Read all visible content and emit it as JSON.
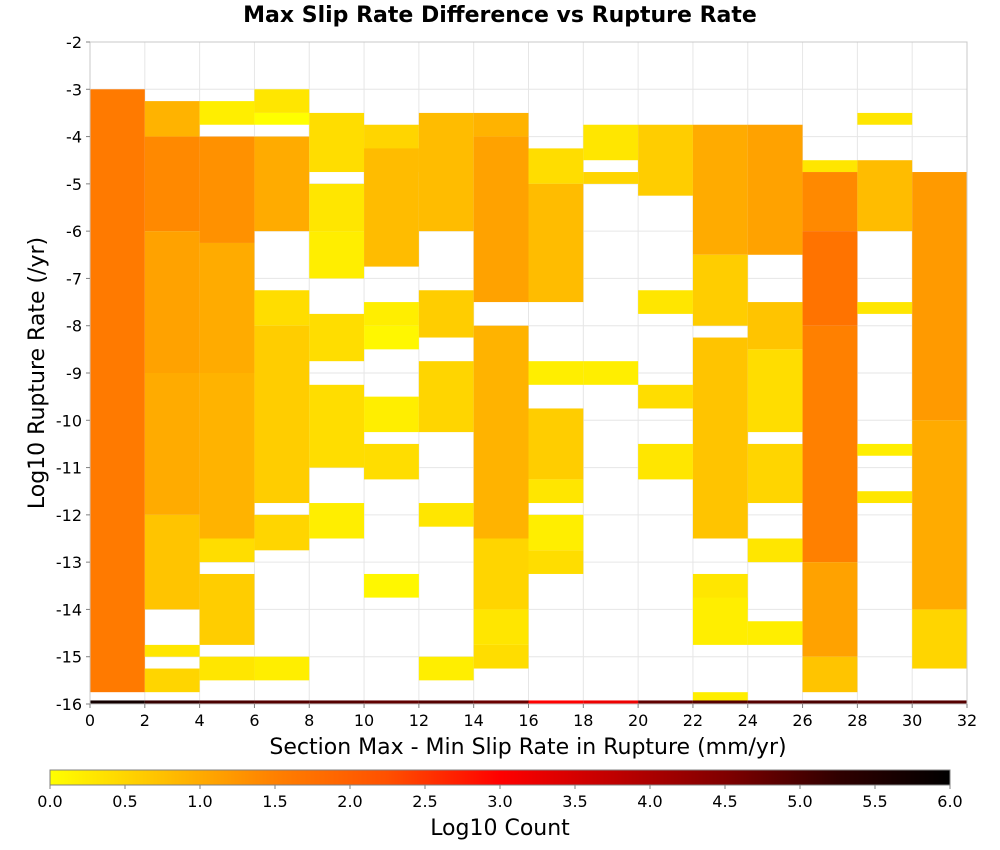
{
  "chart_data": {
    "type": "heatmap",
    "title": "Max Slip Rate Difference vs Rupture Rate",
    "xlabel": "Section Max - Min Slip Rate in Rupture (mm/yr)",
    "ylabel": "Log10 Rupture Rate (/yr)",
    "xlim": [
      0,
      32
    ],
    "ylim": [
      -16,
      -2
    ],
    "x_bin_width": 2,
    "y_bin_height": 0.25,
    "x_ticks": [
      "0",
      "2",
      "4",
      "6",
      "8",
      "10",
      "12",
      "14",
      "16",
      "18",
      "20",
      "22",
      "24",
      "26",
      "28",
      "30",
      "32"
    ],
    "y_ticks": [
      "-2",
      "-3",
      "-4",
      "-5",
      "-6",
      "-7",
      "-8",
      "-9",
      "-10",
      "-11",
      "-12",
      "-13",
      "-14",
      "-15",
      "-16"
    ],
    "grid": true,
    "colorbar": {
      "label": "Log10 Count",
      "range": [
        0,
        6
      ],
      "ticks": [
        "0.0",
        "0.5",
        "1.0",
        "1.5",
        "2.0",
        "2.5",
        "3.0",
        "3.5",
        "4.0",
        "4.5",
        "5.0",
        "5.5",
        "6.0"
      ],
      "stops": [
        "#ffff00",
        "#ffc000",
        "#ff8000",
        "#ff5000",
        "#ff0000",
        "#c00000",
        "#800000",
        "#300000",
        "#000000"
      ]
    },
    "columns": [
      {
        "x": 1,
        "segments": [
          {
            "from": -15.75,
            "to": -3.0,
            "value": 1.6
          }
        ],
        "bottom_value": 5.7
      },
      {
        "x": 3,
        "segments": [
          {
            "from": -4.0,
            "to": -3.25,
            "value": 0.9
          },
          {
            "from": -6.0,
            "to": -4.0,
            "value": 1.4
          },
          {
            "from": -9.0,
            "to": -6.0,
            "value": 1.1
          },
          {
            "from": -12.0,
            "to": -9.0,
            "value": 1.0
          },
          {
            "from": -14.0,
            "to": -12.0,
            "value": 0.7
          },
          {
            "from": -15.0,
            "to": -14.75,
            "value": 0.3
          },
          {
            "from": -15.75,
            "to": -15.25,
            "value": 0.5
          }
        ],
        "bottom_value": 5.2
      },
      {
        "x": 5,
        "segments": [
          {
            "from": -3.75,
            "to": -3.25,
            "value": 0.2
          },
          {
            "from": -6.25,
            "to": -4.0,
            "value": 1.3
          },
          {
            "from": -9.0,
            "to": -6.25,
            "value": 1.0
          },
          {
            "from": -12.5,
            "to": -9.0,
            "value": 0.9
          },
          {
            "from": -13.0,
            "to": -12.5,
            "value": 0.4
          },
          {
            "from": -14.75,
            "to": -13.25,
            "value": 0.6
          },
          {
            "from": -15.5,
            "to": -15.0,
            "value": 0.3
          }
        ],
        "bottom_value": 5.0
      },
      {
        "x": 7,
        "segments": [
          {
            "from": -3.5,
            "to": -3.0,
            "value": 0.3
          },
          {
            "from": -3.75,
            "to": -3.5,
            "value": 0.0
          },
          {
            "from": -6.0,
            "to": -4.0,
            "value": 1.0
          },
          {
            "from": -8.0,
            "to": -7.25,
            "value": 0.4
          },
          {
            "from": -11.75,
            "to": -8.0,
            "value": 0.6
          },
          {
            "from": -12.75,
            "to": -12.0,
            "value": 0.5
          },
          {
            "from": -15.5,
            "to": -15.0,
            "value": 0.2
          }
        ],
        "bottom_value": 4.9
      },
      {
        "x": 9,
        "segments": [
          {
            "from": -4.75,
            "to": -3.5,
            "value": 0.4
          },
          {
            "from": -6.0,
            "to": -5.0,
            "value": 0.3
          },
          {
            "from": -7.0,
            "to": -6.0,
            "value": 0.2
          },
          {
            "from": -8.75,
            "to": -7.75,
            "value": 0.4
          },
          {
            "from": -11.0,
            "to": -9.25,
            "value": 0.4
          },
          {
            "from": -12.5,
            "to": -11.75,
            "value": 0.2
          }
        ],
        "bottom_value": 4.9
      },
      {
        "x": 11,
        "segments": [
          {
            "from": -4.75,
            "to": -3.75,
            "value": 0.5
          },
          {
            "from": -6.75,
            "to": -4.25,
            "value": 0.8
          },
          {
            "from": -8.0,
            "to": -7.5,
            "value": 0.2
          },
          {
            "from": -8.5,
            "to": -8.0,
            "value": 0.1
          },
          {
            "from": -10.25,
            "to": -9.5,
            "value": 0.2
          },
          {
            "from": -11.25,
            "to": -10.5,
            "value": 0.4
          },
          {
            "from": -13.75,
            "to": -13.25,
            "value": 0.1
          }
        ],
        "bottom_value": 4.8
      },
      {
        "x": 13,
        "segments": [
          {
            "from": -6.0,
            "to": -3.5,
            "value": 0.8
          },
          {
            "from": -8.25,
            "to": -7.25,
            "value": 0.6
          },
          {
            "from": -10.25,
            "to": -8.75,
            "value": 0.5
          },
          {
            "from": -12.25,
            "to": -11.75,
            "value": 0.3
          },
          {
            "from": -15.5,
            "to": -15.0,
            "value": 0.2
          }
        ],
        "bottom_value": 4.9
      },
      {
        "x": 15,
        "segments": [
          {
            "from": -4.0,
            "to": -3.5,
            "value": 0.9
          },
          {
            "from": -7.5,
            "to": -4.0,
            "value": 1.1
          },
          {
            "from": -12.5,
            "to": -8.0,
            "value": 0.9
          },
          {
            "from": -14.0,
            "to": -12.5,
            "value": 0.5
          },
          {
            "from": -14.75,
            "to": -14.0,
            "value": 0.3
          },
          {
            "from": -15.25,
            "to": -14.75,
            "value": 0.4
          }
        ],
        "bottom_value": 4.7
      },
      {
        "x": 17,
        "segments": [
          {
            "from": -5.0,
            "to": -4.25,
            "value": 0.4
          },
          {
            "from": -7.5,
            "to": -5.0,
            "value": 0.8
          },
          {
            "from": -9.25,
            "to": -8.75,
            "value": 0.2
          },
          {
            "from": -11.25,
            "to": -9.75,
            "value": 0.6
          },
          {
            "from": -11.75,
            "to": -11.25,
            "value": 0.3
          },
          {
            "from": -12.75,
            "to": -12.0,
            "value": 0.2
          },
          {
            "from": -13.25,
            "to": -12.75,
            "value": 0.4
          }
        ],
        "bottom_value": 3.0
      },
      {
        "x": 19,
        "segments": [
          {
            "from": -4.5,
            "to": -3.75,
            "value": 0.3
          },
          {
            "from": -5.0,
            "to": -4.75,
            "value": 0.5
          },
          {
            "from": -9.25,
            "to": -8.75,
            "value": 0.2
          }
        ],
        "bottom_value": 3.2
      },
      {
        "x": 21,
        "segments": [
          {
            "from": -5.25,
            "to": -3.75,
            "value": 0.6
          },
          {
            "from": -7.75,
            "to": -7.25,
            "value": 0.3
          },
          {
            "from": -9.75,
            "to": -9.25,
            "value": 0.4
          },
          {
            "from": -11.25,
            "to": -10.5,
            "value": 0.3
          }
        ],
        "bottom_value": 4.8
      },
      {
        "x": 23,
        "segments": [
          {
            "from": -6.5,
            "to": -3.75,
            "value": 1.0
          },
          {
            "from": -8.0,
            "to": -6.5,
            "value": 0.6
          },
          {
            "from": -12.5,
            "to": -8.25,
            "value": 0.7
          },
          {
            "from": -14.0,
            "to": -13.25,
            "value": 0.3
          },
          {
            "from": -14.75,
            "to": -13.75,
            "value": 0.2
          },
          {
            "from": -16.0,
            "to": -15.75,
            "value": 0.2
          }
        ],
        "bottom_value": 4.9
      },
      {
        "x": 25,
        "segments": [
          {
            "from": -6.5,
            "to": -3.75,
            "value": 1.1
          },
          {
            "from": -8.5,
            "to": -7.5,
            "value": 0.7
          },
          {
            "from": -10.25,
            "to": -8.5,
            "value": 0.4
          },
          {
            "from": -11.75,
            "to": -10.5,
            "value": 0.5
          },
          {
            "from": -13.0,
            "to": -12.5,
            "value": 0.3
          },
          {
            "from": -14.75,
            "to": -14.25,
            "value": 0.2
          }
        ],
        "bottom_value": 4.9
      },
      {
        "x": 27,
        "segments": [
          {
            "from": -4.75,
            "to": -4.5,
            "value": 0.3
          },
          {
            "from": -6.0,
            "to": -4.75,
            "value": 1.4
          },
          {
            "from": -8.0,
            "to": -6.0,
            "value": 1.7
          },
          {
            "from": -13.0,
            "to": -8.0,
            "value": 1.5
          },
          {
            "from": -15.0,
            "to": -13.0,
            "value": 1.1
          },
          {
            "from": -15.75,
            "to": -15.0,
            "value": 0.7
          }
        ],
        "bottom_value": 5.0
      },
      {
        "x": 29,
        "segments": [
          {
            "from": -3.75,
            "to": -3.5,
            "value": 0.3
          },
          {
            "from": -6.0,
            "to": -4.5,
            "value": 0.8
          },
          {
            "from": -7.75,
            "to": -7.5,
            "value": 0.3
          },
          {
            "from": -10.75,
            "to": -10.5,
            "value": 0.2
          },
          {
            "from": -11.75,
            "to": -11.5,
            "value": 0.3
          }
        ],
        "bottom_value": 4.9
      },
      {
        "x": 31,
        "segments": [
          {
            "from": -10.0,
            "to": -4.75,
            "value": 1.2
          },
          {
            "from": -14.0,
            "to": -10.0,
            "value": 1.0
          },
          {
            "from": -15.25,
            "to": -14.0,
            "value": 0.5
          }
        ],
        "bottom_value": 4.9
      }
    ]
  }
}
